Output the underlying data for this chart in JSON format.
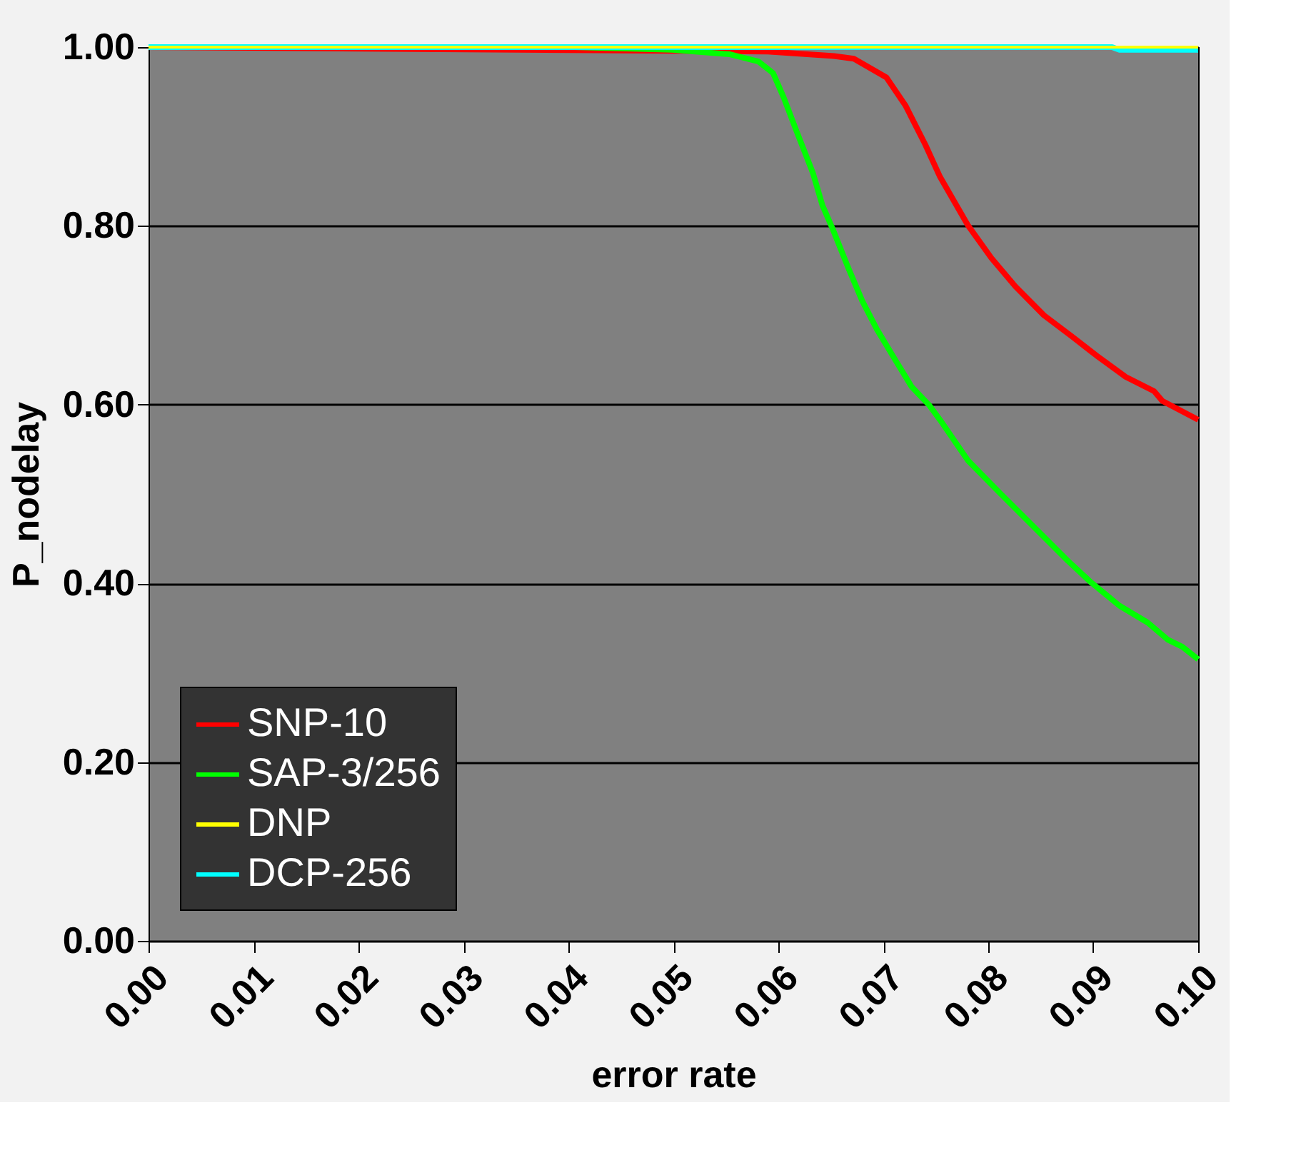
{
  "chart_data": {
    "type": "line",
    "xlabel": "error rate",
    "ylabel": "P_nodelay",
    "xlim": [
      0,
      0.1
    ],
    "ylim": [
      0,
      1
    ],
    "xticks": [
      {
        "value": 0,
        "label": "0.00"
      },
      {
        "value": 0.01,
        "label": "0.01"
      },
      {
        "value": 0.02,
        "label": "0.02"
      },
      {
        "value": 0.03,
        "label": "0.03"
      },
      {
        "value": 0.04,
        "label": "0.04"
      },
      {
        "value": 0.05,
        "label": "0.05"
      },
      {
        "value": 0.06,
        "label": "0.06"
      },
      {
        "value": 0.07,
        "label": "0.07"
      },
      {
        "value": 0.08,
        "label": "0.08"
      },
      {
        "value": 0.09,
        "label": "0.09"
      },
      {
        "value": 0.1,
        "label": "0.10"
      }
    ],
    "yticks": [
      {
        "value": 0,
        "label": "0.00"
      },
      {
        "value": 0.2,
        "label": "0.20"
      },
      {
        "value": 0.4,
        "label": "0.40"
      },
      {
        "value": 0.6,
        "label": "0.60"
      },
      {
        "value": 0.8,
        "label": "0.80"
      },
      {
        "value": 1,
        "label": "1.00"
      }
    ],
    "grid": "y",
    "legend": "bottom left",
    "marker": "none",
    "line_style": "solid",
    "series": [
      {
        "name": "SNP-10",
        "color": "#ff0000",
        "x": [
          0,
          0.059,
          0.0653,
          0.0672,
          0.0703,
          0.0721,
          0.074,
          0.0754,
          0.0781,
          0.0803,
          0.0826,
          0.0853,
          0.088,
          0.0903,
          0.0931,
          0.0958,
          0.0966,
          0.1
        ],
        "values": [
          1.0,
          0.995,
          0.99,
          0.987,
          0.966,
          0.935,
          0.891,
          0.855,
          0.8,
          0.764,
          0.732,
          0.7,
          0.676,
          0.655,
          0.631,
          0.615,
          0.604,
          0.583
        ]
      },
      {
        "name": "SAP-3/256",
        "color": "#00ff00",
        "x": [
          0,
          0.0404,
          0.0499,
          0.0554,
          0.0581,
          0.0595,
          0.0605,
          0.0617,
          0.0633,
          0.0642,
          0.0652,
          0.0667,
          0.068,
          0.0694,
          0.0713,
          0.0727,
          0.0744,
          0.0754,
          0.0781,
          0.0812,
          0.0853,
          0.0876,
          0.0898,
          0.0925,
          0.0952,
          0.0971,
          0.0985,
          0.1
        ],
        "values": [
          1.0,
          1.0,
          0.997,
          0.992,
          0.984,
          0.971,
          0.944,
          0.907,
          0.859,
          0.823,
          0.796,
          0.752,
          0.716,
          0.684,
          0.647,
          0.62,
          0.599,
          0.583,
          0.537,
          0.5,
          0.452,
          0.425,
          0.401,
          0.375,
          0.356,
          0.337,
          0.329,
          0.315
        ]
      },
      {
        "name": "DNP",
        "color": "#ffff00",
        "x": [
          0,
          0.1
        ],
        "values": [
          1.0,
          1.0
        ]
      },
      {
        "name": "DCP-256",
        "color": "#00ffff",
        "x": [
          0,
          0.0918,
          0.0925,
          0.1
        ],
        "values": [
          1.0,
          1.0,
          0.997,
          0.997
        ]
      }
    ]
  }
}
